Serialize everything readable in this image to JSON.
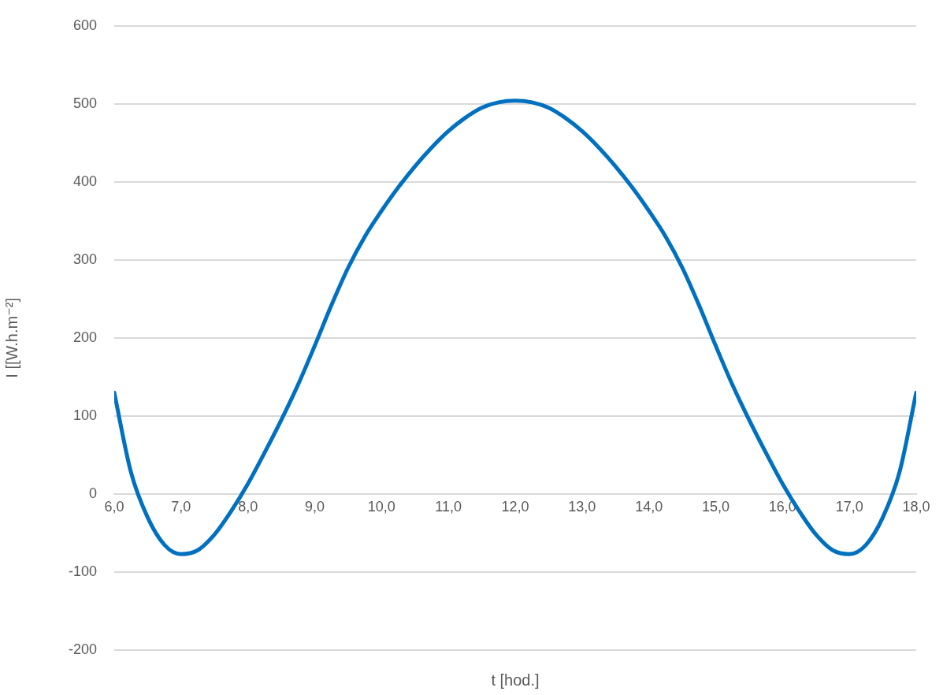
{
  "chart_data": {
    "type": "line",
    "xlabel": "t [hod.]",
    "ylabel": "I [[W.h.m⁻²]",
    "xlim": [
      6,
      18
    ],
    "xticks": [
      {
        "value": 6,
        "label": "6,0"
      },
      {
        "value": 7,
        "label": "7,0"
      },
      {
        "value": 8,
        "label": "8,0"
      },
      {
        "value": 9,
        "label": "9,0"
      },
      {
        "value": 10,
        "label": "10,0"
      },
      {
        "value": 11,
        "label": "11,0"
      },
      {
        "value": 12,
        "label": "12,0"
      },
      {
        "value": 13,
        "label": "13,0"
      },
      {
        "value": 14,
        "label": "14,0"
      },
      {
        "value": 15,
        "label": "15,0"
      },
      {
        "value": 16,
        "label": "16,0"
      },
      {
        "value": 17,
        "label": "17,0"
      },
      {
        "value": 18,
        "label": "18,0"
      }
    ],
    "ylim": [
      -200,
      600
    ],
    "yticks": [
      -200,
      -100,
      0,
      100,
      200,
      300,
      400,
      500,
      600
    ],
    "grid": "y",
    "legend": false,
    "marker": "none",
    "line_style": "solid",
    "series": [
      {
        "color": "#0070c0",
        "x": [
          6,
          6.25,
          6.5,
          6.75,
          7,
          7.25,
          7.5,
          7.75,
          8,
          8.25,
          8.5,
          8.75,
          9,
          9.25,
          9.5,
          9.75,
          10,
          10.25,
          10.5,
          10.75,
          11,
          11.25,
          11.5,
          11.75,
          12,
          12.25,
          12.5,
          12.75,
          13,
          13.25,
          13.5,
          13.75,
          14,
          14.25,
          14.5,
          14.75,
          15,
          15.25,
          15.5,
          15.75,
          16,
          16.25,
          16.5,
          16.75,
          17,
          17.25,
          17.5,
          17.75,
          18
        ],
        "values": [
          130,
          28,
          -30,
          -65,
          -77,
          -72,
          -52,
          -22,
          13,
          53,
          95,
          140,
          190,
          242,
          290,
          330,
          363,
          393,
          420,
          444,
          465,
          482,
          495,
          502,
          504,
          502,
          495,
          482,
          465,
          444,
          420,
          393,
          363,
          330,
          290,
          242,
          190,
          140,
          95,
          53,
          13,
          -22,
          -52,
          -72,
          -77,
          -65,
          -30,
          28,
          130
        ]
      }
    ]
  }
}
